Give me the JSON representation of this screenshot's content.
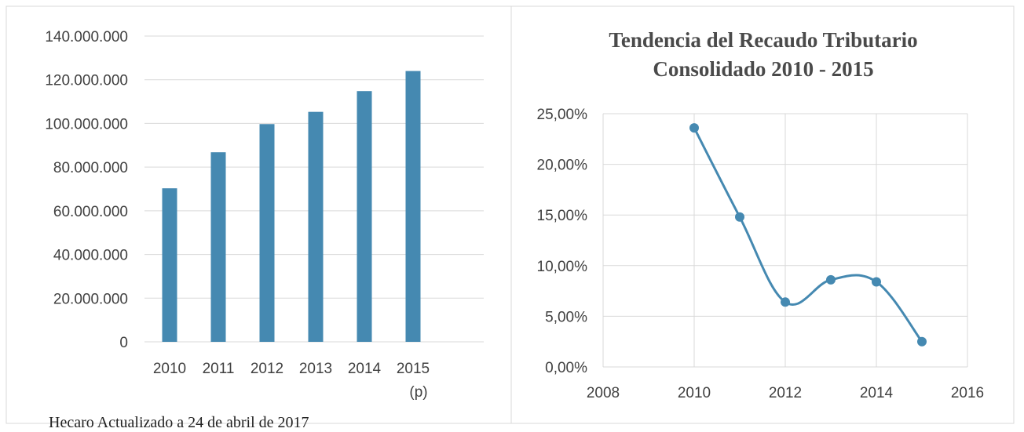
{
  "colors": {
    "series": "#4589b1",
    "grid": "#d9d9d9",
    "border": "#d9d9d9",
    "text": "#404040"
  },
  "footer": {
    "text": "Hecaro Actualizado a 24 de abril de 2017"
  },
  "chart_data": [
    {
      "type": "bar",
      "title": "",
      "xlabel": "",
      "ylabel": "",
      "categories": [
        "2010",
        "2011",
        "2012",
        "2013",
        "2014",
        "2015\n(p)"
      ],
      "values": [
        70300000,
        86800000,
        99700000,
        105300000,
        114800000,
        124000000
      ],
      "ylim": [
        0,
        140000000
      ],
      "yticks": [
        0,
        20000000,
        40000000,
        60000000,
        80000000,
        100000000,
        120000000,
        140000000
      ],
      "ytick_labels": [
        "0",
        "20.000.000",
        "40.000.000",
        "60.000.000",
        "80.000.000",
        "100.000.000",
        "120.000.000",
        "140.000.000"
      ],
      "grid": "horizontal",
      "legend": "none"
    },
    {
      "type": "scatter",
      "title": [
        "Tendencia  del  Recaudo  Tributario",
        "Consolidado   2010 - 2015"
      ],
      "xlabel": "",
      "ylabel": "",
      "x": [
        2010,
        2011,
        2012,
        2013,
        2014,
        2015
      ],
      "y": [
        23.6,
        14.8,
        6.4,
        8.6,
        8.4,
        2.5
      ],
      "xlim": [
        2008,
        2016
      ],
      "ylim": [
        0,
        25
      ],
      "xticks": [
        2008,
        2010,
        2012,
        2014,
        2016
      ],
      "yticks": [
        0,
        5,
        10,
        15,
        20,
        25
      ],
      "ytick_labels": [
        "0,00%",
        "5,00%",
        "10,00%",
        "15,00%",
        "20,00%",
        "25,00%"
      ],
      "line": "smooth",
      "grid": "both",
      "legend": "none"
    }
  ]
}
